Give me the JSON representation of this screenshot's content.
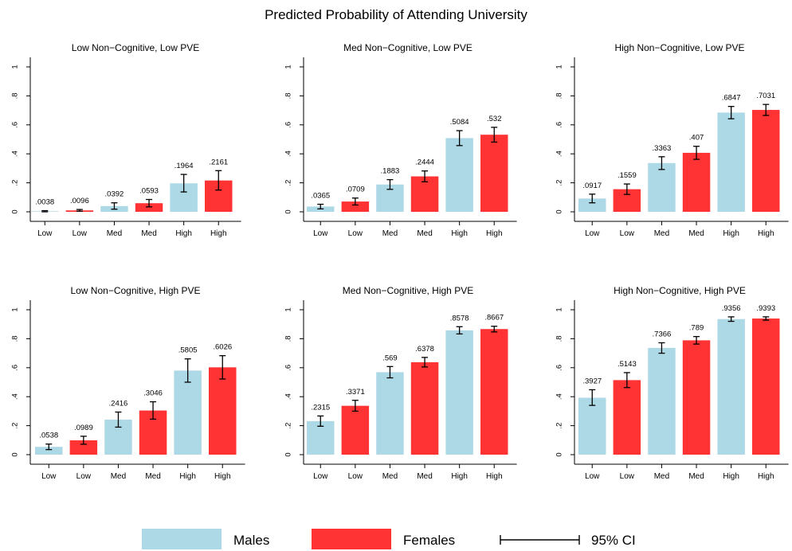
{
  "figure": {
    "title": "Predicted Probability of Attending University"
  },
  "colors": {
    "males": "#add8e6",
    "females": "#ff3333",
    "axis": "#000000"
  },
  "legend": {
    "males_label": "Males",
    "females_label": "Females",
    "ci_label": "95% CI"
  },
  "chart_data": [
    {
      "type": "bar",
      "title": "Low Non−Cognitive, Low PVE",
      "categories": [
        "Low",
        "Low",
        "Med",
        "Med",
        "High",
        "High"
      ],
      "groups": [
        "Males",
        "Females",
        "Males",
        "Females",
        "Males",
        "Females"
      ],
      "values": [
        0.0038,
        0.0096,
        0.0392,
        0.0593,
        0.1964,
        0.2161
      ],
      "labels": [
        ".0038",
        ".0096",
        ".0392",
        ".0593",
        ".1964",
        ".2161"
      ],
      "ci": [
        [
          0.0,
          0.008
        ],
        [
          0.004,
          0.016
        ],
        [
          0.018,
          0.062
        ],
        [
          0.034,
          0.085
        ],
        [
          0.137,
          0.258
        ],
        [
          0.15,
          0.284
        ]
      ],
      "yticks": [
        "0",
        ".2",
        ".4",
        ".6",
        ".8",
        "1"
      ],
      "ylim": [
        0,
        1
      ]
    },
    {
      "type": "bar",
      "title": "Med Non−Cognitive, Low PVE",
      "categories": [
        "Low",
        "Low",
        "Med",
        "Med",
        "High",
        "High"
      ],
      "groups": [
        "Males",
        "Females",
        "Males",
        "Females",
        "Males",
        "Females"
      ],
      "values": [
        0.0365,
        0.0709,
        0.1883,
        0.2444,
        0.5084,
        0.532
      ],
      "labels": [
        ".0365",
        ".0709",
        ".1883",
        ".2444",
        ".5084",
        ".532"
      ],
      "ci": [
        [
          0.02,
          0.052
        ],
        [
          0.047,
          0.095
        ],
        [
          0.155,
          0.222
        ],
        [
          0.207,
          0.282
        ],
        [
          0.457,
          0.56
        ],
        [
          0.481,
          0.583
        ]
      ],
      "yticks": [
        "0",
        ".2",
        ".4",
        ".6",
        ".8",
        "1"
      ],
      "ylim": [
        0,
        1
      ]
    },
    {
      "type": "bar",
      "title": "High Non−Cognitive, Low PVE",
      "categories": [
        "Low",
        "Low",
        "Med",
        "Med",
        "High",
        "High"
      ],
      "groups": [
        "Males",
        "Females",
        "Males",
        "Females",
        "Males",
        "Females"
      ],
      "values": [
        0.0917,
        0.1559,
        0.3363,
        0.407,
        0.6847,
        0.7031
      ],
      "labels": [
        ".0917",
        ".1559",
        ".3363",
        ".407",
        ".6847",
        ".7031"
      ],
      "ci": [
        [
          0.062,
          0.122
        ],
        [
          0.12,
          0.192
        ],
        [
          0.292,
          0.38
        ],
        [
          0.362,
          0.452
        ],
        [
          0.642,
          0.727
        ],
        [
          0.665,
          0.741
        ]
      ],
      "yticks": [
        "0",
        ".2",
        ".4",
        ".6",
        ".8",
        "1"
      ],
      "ylim": [
        0,
        1
      ]
    },
    {
      "type": "bar",
      "title": "Low Non−Cognitive, High PVE",
      "categories": [
        "Low",
        "Low",
        "Med",
        "Med",
        "High",
        "High"
      ],
      "groups": [
        "Males",
        "Females",
        "Males",
        "Females",
        "Males",
        "Females"
      ],
      "values": [
        0.0538,
        0.0989,
        0.2416,
        0.3046,
        0.5805,
        0.6026
      ],
      "labels": [
        ".0538",
        ".0989",
        ".2416",
        ".3046",
        ".5805",
        ".6026"
      ],
      "ci": [
        [
          0.035,
          0.073
        ],
        [
          0.072,
          0.127
        ],
        [
          0.19,
          0.294
        ],
        [
          0.245,
          0.365
        ],
        [
          0.5,
          0.661
        ],
        [
          0.522,
          0.683
        ]
      ],
      "yticks": [
        "0",
        ".2",
        ".4",
        ".6",
        ".8",
        "1"
      ],
      "ylim": [
        0,
        1
      ]
    },
    {
      "type": "bar",
      "title": "Med Non−Cognitive, High PVE",
      "categories": [
        "Low",
        "Low",
        "Med",
        "Med",
        "High",
        "High"
      ],
      "groups": [
        "Males",
        "Females",
        "Males",
        "Females",
        "Males",
        "Females"
      ],
      "values": [
        0.2315,
        0.3371,
        0.569,
        0.6378,
        0.8578,
        0.8667
      ],
      "labels": [
        ".2315",
        ".3371",
        ".569",
        ".6378",
        ".8578",
        ".8667"
      ],
      "ci": [
        [
          0.196,
          0.267
        ],
        [
          0.3,
          0.375
        ],
        [
          0.53,
          0.608
        ],
        [
          0.605,
          0.671
        ],
        [
          0.833,
          0.883
        ],
        [
          0.847,
          0.886
        ]
      ],
      "yticks": [
        "0",
        ".2",
        ".4",
        ".6",
        ".8",
        "1"
      ],
      "ylim": [
        0,
        1
      ]
    },
    {
      "type": "bar",
      "title": "High Non−Cognitive, High PVE",
      "categories": [
        "Low",
        "Low",
        "Med",
        "Med",
        "High",
        "High"
      ],
      "groups": [
        "Males",
        "Females",
        "Males",
        "Females",
        "Males",
        "Females"
      ],
      "values": [
        0.3927,
        0.5143,
        0.7366,
        0.789,
        0.9356,
        0.9393
      ],
      "labels": [
        ".3927",
        ".5143",
        ".7366",
        ".789",
        ".9356",
        ".9393"
      ],
      "ci": [
        [
          0.34,
          0.448
        ],
        [
          0.463,
          0.566
        ],
        [
          0.7,
          0.772
        ],
        [
          0.763,
          0.815
        ],
        [
          0.92,
          0.951
        ],
        [
          0.928,
          0.951
        ]
      ],
      "yticks": [
        "0",
        ".2",
        ".4",
        ".6",
        ".8",
        "1"
      ],
      "ylim": [
        0,
        1
      ]
    }
  ]
}
